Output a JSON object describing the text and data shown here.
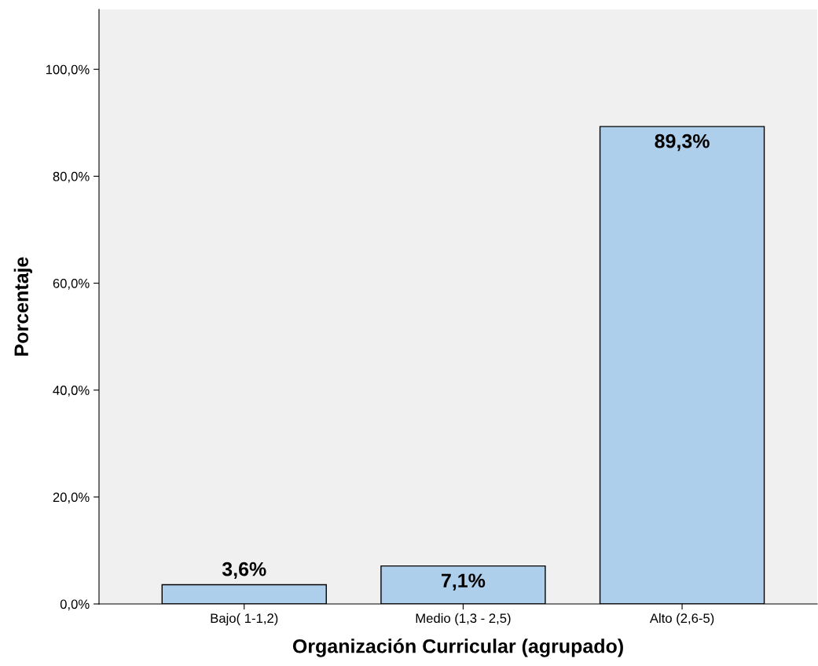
{
  "chart_data": {
    "type": "bar",
    "xlabel": "Organización Curricular (agrupado)",
    "ylabel": "Porcentaje",
    "categories": [
      "Bajo( 1-1,2)",
      "Medio (1,3 - 2,5)",
      "Alto (2,6-5)"
    ],
    "values": [
      3.6,
      7.1,
      89.3
    ],
    "value_labels": [
      "3,6%",
      "7,1%",
      "89,3%"
    ],
    "color": "#aecfec",
    "ylim": [
      0,
      111.2
    ],
    "yticks": [
      {
        "value": 0,
        "label": "0,0%"
      },
      {
        "value": 20,
        "label": "20,0%"
      },
      {
        "value": 40,
        "label": "40,0%"
      },
      {
        "value": 60,
        "label": "60,0%"
      },
      {
        "value": 80,
        "label": "80,0%"
      },
      {
        "value": 100,
        "label": "100,0%"
      }
    ],
    "grid": false,
    "legend": false
  }
}
